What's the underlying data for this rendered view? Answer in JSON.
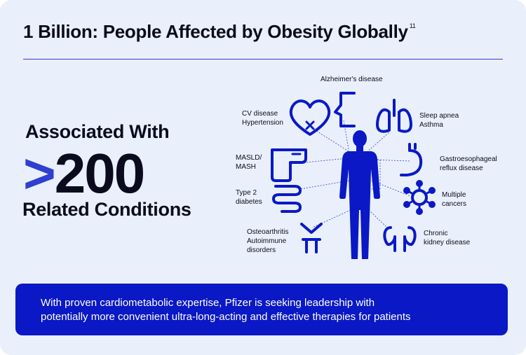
{
  "header": {
    "title": "1 Billion: People Affected by Obesity Globally",
    "footnote": "11"
  },
  "headline": {
    "line1": "Associated With",
    "prefix": ">",
    "number": "200",
    "line3": "Related Conditions"
  },
  "conditions": {
    "alzheimers": {
      "label": "Alzheimer's disease"
    },
    "cv": {
      "line1": "CV disease",
      "line2": "Hypertension"
    },
    "sleep": {
      "line1": "Sleep apnea",
      "line2": "Asthma"
    },
    "masld": {
      "line1": "MASLD/",
      "line2": "MASH"
    },
    "gerd": {
      "line1": "Gastroesophageal",
      "line2": "reflux disease"
    },
    "diabetes": {
      "line1": "Type 2",
      "line2": "diabetes"
    },
    "cancers": {
      "line1": "Multiple",
      "line2": "cancers"
    },
    "osteo": {
      "line1": "Osteoarthritis",
      "line2": "Autoimmune",
      "line3": "disorders"
    },
    "kidney": {
      "line1": "Chronic",
      "line2": "kidney disease"
    }
  },
  "banner": {
    "line1": "With proven cardiometabolic expertise, Pfizer is seeking leadership with",
    "line2": "potentially more convenient ultra-long-acting and effective therapies for patients"
  },
  "colors": {
    "accent": "#2f3fd0",
    "figure": "#0a19c5",
    "banner": "#0a19c5",
    "background": "#e9f0fb"
  }
}
